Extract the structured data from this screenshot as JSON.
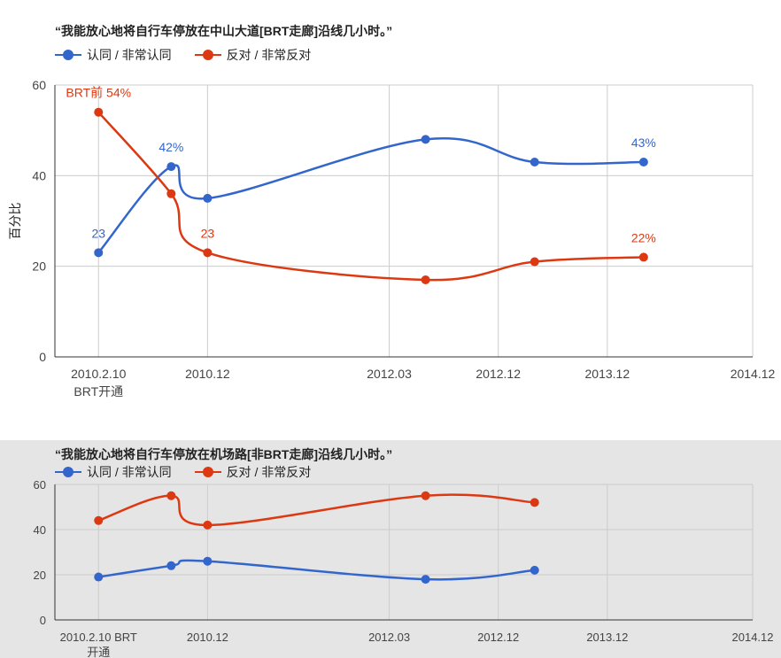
{
  "colors": {
    "agree": "#3366cc",
    "oppose": "#dc3912"
  },
  "chart_data": [
    {
      "type": "line",
      "title": "“我能放心地将自行车停放在中山大道[BRT走廊]沿线几小时。”",
      "ylabel": "百分比",
      "ylim": [
        0,
        60
      ],
      "yticks": [
        0,
        20,
        40,
        60
      ],
      "x_ticks": [
        {
          "x": 0,
          "label": [
            "2010.2.10",
            "BRT开通"
          ]
        },
        {
          "x": 1.5,
          "label": [
            "2010.12"
          ]
        },
        {
          "x": 4,
          "label": [
            "2012.03"
          ]
        },
        {
          "x": 5.5,
          "label": [
            "2012.12"
          ]
        },
        {
          "x": 7,
          "label": [
            "2013.12"
          ]
        },
        {
          "x": 9,
          "label": [
            "2014.12"
          ]
        }
      ],
      "xlim": [
        -0.6,
        9.0
      ],
      "legend_position": "top",
      "series": [
        {
          "name": "认同 / 非常认同",
          "color": "#3366cc",
          "points": [
            [
              0,
              23
            ],
            [
              1,
              42
            ],
            [
              1.5,
              35
            ],
            [
              4.5,
              48
            ],
            [
              6,
              43
            ],
            [
              7.5,
              43
            ]
          ],
          "labels": [
            {
              "index": 0,
              "text": "23"
            },
            {
              "index": 1,
              "text": "42%"
            },
            {
              "index": 5,
              "text": "43%"
            }
          ]
        },
        {
          "name": "反对 / 非常反对",
          "color": "#dc3912",
          "points": [
            [
              0,
              54
            ],
            [
              1,
              36
            ],
            [
              1.5,
              23
            ],
            [
              4.5,
              17
            ],
            [
              6,
              21
            ],
            [
              7.5,
              22
            ]
          ],
          "labels": [
            {
              "index": 0,
              "text": "BRT前 54%"
            },
            {
              "index": 2,
              "text": "23"
            },
            {
              "index": 5,
              "text": "22%"
            }
          ]
        }
      ]
    },
    {
      "type": "line",
      "title": "“我能放心地将自行车停放在机场路[非BRT走廊]沿线几小时。”",
      "ylabel": "",
      "ylim": [
        0,
        60
      ],
      "yticks": [
        0,
        20,
        40,
        60
      ],
      "x_ticks": [
        {
          "x": 0,
          "label": [
            "2010.2.10 BRT",
            "开通"
          ]
        },
        {
          "x": 1.5,
          "label": [
            "2010.12"
          ]
        },
        {
          "x": 4,
          "label": [
            "2012.03"
          ]
        },
        {
          "x": 5.5,
          "label": [
            "2012.12"
          ]
        },
        {
          "x": 7,
          "label": [
            "2013.12"
          ]
        },
        {
          "x": 9,
          "label": [
            "2014.12"
          ]
        }
      ],
      "xlim": [
        -0.6,
        9.0
      ],
      "legend_position": "top",
      "series": [
        {
          "name": "认同 / 非常认同",
          "color": "#3366cc",
          "points": [
            [
              0,
              19
            ],
            [
              1,
              24
            ],
            [
              1.5,
              26
            ],
            [
              4.5,
              18
            ],
            [
              6,
              22
            ]
          ],
          "labels": []
        },
        {
          "name": "反对 / 非常反对",
          "color": "#dc3912",
          "points": [
            [
              0,
              44
            ],
            [
              1,
              55
            ],
            [
              1.5,
              42
            ],
            [
              4.5,
              55
            ],
            [
              6,
              52
            ]
          ],
          "labels": []
        }
      ]
    }
  ]
}
